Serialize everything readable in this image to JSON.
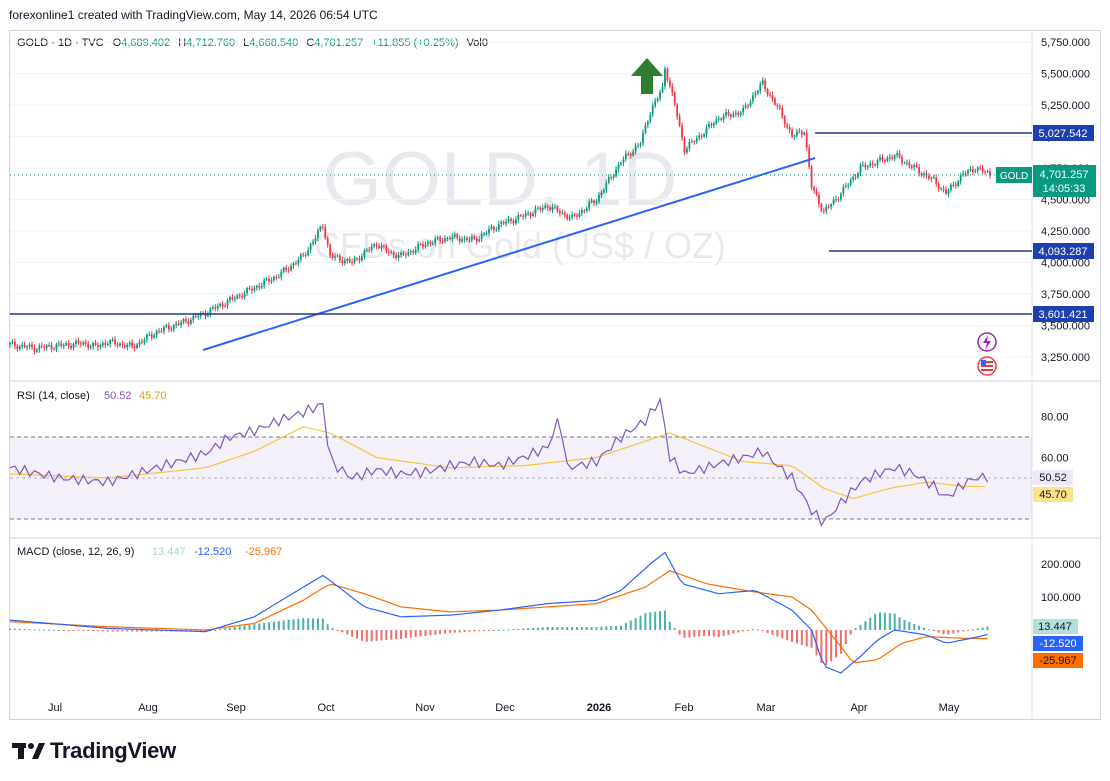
{
  "header": {
    "credit": "forexonline1 created with TradingView.com, May 14, 2026 06:54 UTC"
  },
  "legend": {
    "symbol": "GOLD · 1D · TVC",
    "o_label": "O",
    "o_value": "4,689.402",
    "h_label": "H",
    "h_value": "4,712.760",
    "l_label": "L",
    "l_value": "4,668.540",
    "c_label": "C",
    "c_value": "4,701.257",
    "change": "+11.855 (+0.25%)",
    "vol": "Vol0"
  },
  "watermark": {
    "title": "GOLD, 1D",
    "subtitle": "CFDs on Gold (US$ / OZ)"
  },
  "colors": {
    "up": "#089981",
    "down": "#f23645",
    "trendline": "#2962ff",
    "rsi": "#7e57c2",
    "rsi_ma": "#f7c63d",
    "macd": "#2962ff",
    "signal": "#ff6d00"
  },
  "chart_data": [
    {
      "type": "candlestick",
      "title": "GOLD · 1D · TVC",
      "y_axis_ticks": [
        "5,750.000",
        "5,500.000",
        "5,250.000",
        "5,000.000",
        "4,750.000",
        "4,500.000",
        "4,250.000",
        "4,000.000",
        "3,750.000",
        "3,500.000",
        "3,250.000"
      ],
      "ylim": [
        3125,
        5850
      ],
      "x_axis_ticks": [
        "Jul",
        "Aug",
        "Sep",
        "Oct",
        "Nov",
        "Dec",
        "2026",
        "Feb",
        "Mar",
        "Apr",
        "May"
      ],
      "price_path": [
        [
          0,
          3350
        ],
        [
          10,
          3320
        ],
        [
          20,
          3340
        ],
        [
          30,
          3360
        ],
        [
          35,
          3330
        ],
        [
          40,
          3370
        ],
        [
          47,
          3345
        ],
        [
          50,
          3330
        ],
        [
          60,
          3450
        ],
        [
          70,
          3520
        ],
        [
          80,
          3600
        ],
        [
          90,
          3700
        ],
        [
          100,
          3800
        ],
        [
          110,
          3900
        ],
        [
          120,
          4050
        ],
        [
          125,
          4200
        ],
        [
          128,
          4300
        ],
        [
          131,
          4050
        ],
        [
          140,
          4000
        ],
        [
          150,
          4150
        ],
        [
          155,
          4080
        ],
        [
          160,
          4050
        ],
        [
          170,
          4150
        ],
        [
          180,
          4200
        ],
        [
          190,
          4180
        ],
        [
          200,
          4300
        ],
        [
          210,
          4370
        ],
        [
          220,
          4450
        ],
        [
          230,
          4350
        ],
        [
          240,
          4500
        ],
        [
          250,
          4800
        ],
        [
          258,
          4950
        ],
        [
          262,
          5200
        ],
        [
          267,
          5380
        ],
        [
          268,
          5550
        ],
        [
          272,
          5250
        ],
        [
          276,
          4900
        ],
        [
          282,
          5000
        ],
        [
          290,
          5150
        ],
        [
          300,
          5200
        ],
        [
          305,
          5350
        ],
        [
          308,
          5420
        ],
        [
          315,
          5200
        ],
        [
          320,
          5000
        ],
        [
          325,
          5050
        ],
        [
          328,
          4600
        ],
        [
          333,
          4400
        ],
        [
          340,
          4550
        ],
        [
          348,
          4750
        ],
        [
          355,
          4800
        ],
        [
          362,
          4850
        ],
        [
          370,
          4750
        ],
        [
          378,
          4650
        ],
        [
          383,
          4550
        ],
        [
          390,
          4700
        ],
        [
          395,
          4750
        ],
        [
          401,
          4701
        ]
      ],
      "horizontal_levels": [
        "5,027.542",
        "4,093.287",
        "3,601.421"
      ],
      "last_price": "4,701.257",
      "last_price_symbol": "GOLD",
      "countdown": "14:05:33"
    },
    {
      "type": "line",
      "title": "RSI (14, close)",
      "series": [
        {
          "name": "RSI",
          "value": "50.52"
        },
        {
          "name": "RSI-based MA",
          "value": "45.70"
        }
      ],
      "y_axis_ticks": [
        "80.00",
        "60.00"
      ],
      "band": [
        30,
        70
      ],
      "ylim": [
        25,
        90
      ],
      "rsi_path": [
        [
          0,
          55
        ],
        [
          20,
          50
        ],
        [
          40,
          48
        ],
        [
          60,
          55
        ],
        [
          80,
          62
        ],
        [
          90,
          70
        ],
        [
          100,
          73
        ],
        [
          110,
          78
        ],
        [
          120,
          82
        ],
        [
          128,
          86
        ],
        [
          131,
          58
        ],
        [
          140,
          50
        ],
        [
          150,
          54
        ],
        [
          160,
          52
        ],
        [
          170,
          53
        ],
        [
          180,
          56
        ],
        [
          190,
          58
        ],
        [
          200,
          56
        ],
        [
          210,
          60
        ],
        [
          220,
          65
        ],
        [
          225,
          80
        ],
        [
          228,
          55
        ],
        [
          240,
          58
        ],
        [
          250,
          70
        ],
        [
          260,
          78
        ],
        [
          266,
          88
        ],
        [
          270,
          60
        ],
        [
          276,
          52
        ],
        [
          282,
          54
        ],
        [
          290,
          57
        ],
        [
          300,
          60
        ],
        [
          308,
          63
        ],
        [
          315,
          55
        ],
        [
          320,
          50
        ],
        [
          328,
          34
        ],
        [
          333,
          28
        ],
        [
          340,
          38
        ],
        [
          348,
          48
        ],
        [
          355,
          52
        ],
        [
          362,
          55
        ],
        [
          370,
          52
        ],
        [
          378,
          46
        ],
        [
          383,
          40
        ],
        [
          390,
          47
        ],
        [
          395,
          50
        ],
        [
          401,
          50.52
        ]
      ],
      "rsi_ma_path": [
        [
          0,
          52
        ],
        [
          40,
          50
        ],
        [
          80,
          55
        ],
        [
          100,
          63
        ],
        [
          120,
          75
        ],
        [
          131,
          72
        ],
        [
          150,
          60
        ],
        [
          180,
          55
        ],
        [
          210,
          56
        ],
        [
          240,
          60
        ],
        [
          260,
          68
        ],
        [
          270,
          72
        ],
        [
          285,
          65
        ],
        [
          300,
          58
        ],
        [
          320,
          56
        ],
        [
          333,
          45
        ],
        [
          345,
          40
        ],
        [
          360,
          45
        ],
        [
          375,
          48
        ],
        [
          390,
          46
        ],
        [
          401,
          45.7
        ]
      ]
    },
    {
      "type": "bar",
      "title": "MACD (close, 12, 26, 9)",
      "series": [
        {
          "name": "Histogram",
          "value": "13.447"
        },
        {
          "name": "MACD",
          "value": "-12.520"
        },
        {
          "name": "Signal",
          "value": "-25.967"
        }
      ],
      "y_axis_ticks": [
        "200.000",
        "100.000"
      ],
      "ylim": [
        -150,
        240
      ],
      "macd_path": [
        [
          0,
          30
        ],
        [
          40,
          5
        ],
        [
          80,
          -5
        ],
        [
          100,
          40
        ],
        [
          120,
          130
        ],
        [
          128,
          165
        ],
        [
          131,
          150
        ],
        [
          145,
          70
        ],
        [
          160,
          40
        ],
        [
          180,
          45
        ],
        [
          200,
          60
        ],
        [
          220,
          80
        ],
        [
          240,
          90
        ],
        [
          250,
          120
        ],
        [
          262,
          200
        ],
        [
          268,
          235
        ],
        [
          275,
          140
        ],
        [
          290,
          110
        ],
        [
          305,
          120
        ],
        [
          320,
          60
        ],
        [
          328,
          0
        ],
        [
          333,
          -110
        ],
        [
          340,
          -130
        ],
        [
          348,
          -80
        ],
        [
          355,
          -30
        ],
        [
          362,
          0
        ],
        [
          375,
          -15
        ],
        [
          383,
          -40
        ],
        [
          390,
          -30
        ],
        [
          401,
          -12.5
        ]
      ],
      "signal_path": [
        [
          0,
          25
        ],
        [
          40,
          10
        ],
        [
          80,
          0
        ],
        [
          100,
          20
        ],
        [
          120,
          90
        ],
        [
          131,
          140
        ],
        [
          145,
          110
        ],
        [
          160,
          70
        ],
        [
          180,
          55
        ],
        [
          200,
          60
        ],
        [
          220,
          70
        ],
        [
          240,
          80
        ],
        [
          260,
          130
        ],
        [
          270,
          180
        ],
        [
          285,
          140
        ],
        [
          305,
          115
        ],
        [
          320,
          100
        ],
        [
          328,
          60
        ],
        [
          340,
          -50
        ],
        [
          345,
          -100
        ],
        [
          355,
          -90
        ],
        [
          365,
          -40
        ],
        [
          375,
          -20
        ],
        [
          390,
          -25
        ],
        [
          401,
          -26
        ]
      ]
    }
  ]
}
